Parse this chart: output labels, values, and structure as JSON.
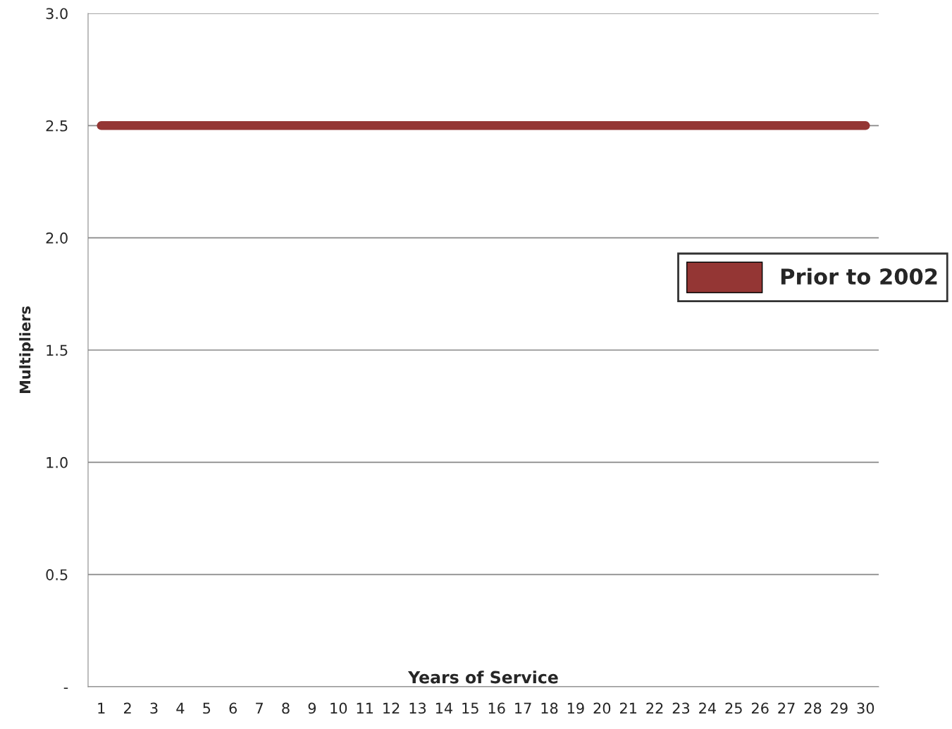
{
  "chart_data": {
    "type": "line",
    "xlabel": "Years of Service",
    "ylabel": "Multipliers",
    "categories": [
      "1",
      "2",
      "3",
      "4",
      "5",
      "6",
      "7",
      "8",
      "9",
      "10",
      "11",
      "12",
      "13",
      "14",
      "15",
      "16",
      "17",
      "18",
      "19",
      "20",
      "21",
      "22",
      "23",
      "24",
      "25",
      "26",
      "27",
      "28",
      "29",
      "30"
    ],
    "series": [
      {
        "name": "Prior to 2002",
        "color": "#943634",
        "values": [
          2.5,
          2.5,
          2.5,
          2.5,
          2.5,
          2.5,
          2.5,
          2.5,
          2.5,
          2.5,
          2.5,
          2.5,
          2.5,
          2.5,
          2.5,
          2.5,
          2.5,
          2.5,
          2.5,
          2.5,
          2.5,
          2.5,
          2.5,
          2.5,
          2.5,
          2.5,
          2.5,
          2.5,
          2.5,
          2.5
        ]
      }
    ],
    "ylim": [
      0,
      3.0
    ],
    "yticks": [
      {
        "value": 0,
        "label": "-"
      },
      {
        "value": 0.5,
        "label": "0.5"
      },
      {
        "value": 1.0,
        "label": "1.0"
      },
      {
        "value": 1.5,
        "label": "1.5"
      },
      {
        "value": 2.0,
        "label": "2.0"
      },
      {
        "value": 2.5,
        "label": "2.5"
      },
      {
        "value": 3.0,
        "label": "3.0"
      }
    ],
    "grid": "y",
    "legend": "right",
    "marker": "none",
    "line_style": "solid"
  }
}
